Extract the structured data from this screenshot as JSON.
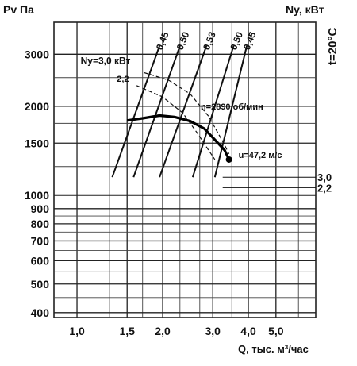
{
  "chart_data": {
    "type": "line",
    "y_title": "Pv Па",
    "power_title": "Ny, кВт",
    "temperature_label": "t=20°C",
    "x_title": "Q, тыс. м³/час",
    "scale": "log-log",
    "grid": true,
    "x_range": [
      0.83,
      6.9
    ],
    "y_range": [
      385,
      3850
    ],
    "x_ticks": [
      {
        "value": 1.0,
        "label": "1,0"
      },
      {
        "value": 1.5,
        "label": "1,5"
      },
      {
        "value": 2.0,
        "label": "2,0"
      },
      {
        "value": 3.0,
        "label": "3,0"
      },
      {
        "value": 4.0,
        "label": "4,0"
      },
      {
        "value": 5.0,
        "label": "5,0"
      }
    ],
    "y_ticks": [
      {
        "value": 3000,
        "label": "3000"
      },
      {
        "value": 2000,
        "label": "2000"
      },
      {
        "value": 1500,
        "label": "1500"
      },
      {
        "value": 1000,
        "label": "1000"
      },
      {
        "value": 900,
        "label": "900"
      },
      {
        "value": 800,
        "label": "800"
      },
      {
        "value": 700,
        "label": "700"
      },
      {
        "value": 600,
        "label": "600"
      },
      {
        "value": 500,
        "label": "500"
      },
      {
        "value": 400,
        "label": "400"
      }
    ],
    "extra_x_grid": [
      1.3,
      1.7,
      2.3,
      2.7,
      3.5,
      6.0
    ],
    "extra_y_grid": [
      2500,
      1750,
      1250,
      850,
      750,
      650,
      550,
      450
    ],
    "pressure_curve": {
      "x": [
        1.5,
        1.7,
        1.95,
        2.2,
        2.5,
        2.8,
        3.05,
        3.3,
        3.42
      ],
      "y": [
        1790,
        1820,
        1860,
        1840,
        1780,
        1680,
        1540,
        1420,
        1320
      ],
      "label": "n=2890 об/мин",
      "label_at": {
        "x": 2.72,
        "y": 1950
      }
    },
    "operating_point": {
      "x": 3.42,
      "y": 1320,
      "label": "u=47,2 м/с"
    },
    "efficiency_lines": [
      {
        "label": "0,45",
        "x_low": 1.33,
        "x_high": 1.95
      },
      {
        "label": "0,50",
        "x_low": 1.58,
        "x_high": 2.3
      },
      {
        "label": "0,53",
        "x_low": 1.95,
        "x_high": 2.85
      },
      {
        "label": "0,50",
        "x_low": 2.55,
        "x_high": 3.55
      },
      {
        "label": "0,45",
        "x_low": 3.05,
        "x_high": 3.95
      }
    ],
    "efficiency_y_low": 1150,
    "efficiency_y_high": 3200,
    "power_curves": [
      {
        "label": "3,0",
        "x": [
          1.72,
          2.1,
          2.5,
          2.9,
          3.3,
          3.42
        ],
        "y": [
          2600,
          2450,
          2200,
          1850,
          1480,
          1380
        ]
      },
      {
        "label": "2,2",
        "x": [
          1.62,
          2.0,
          2.35,
          2.65,
          2.9,
          3.05
        ],
        "y": [
          2350,
          2150,
          1900,
          1620,
          1420,
          1320
        ]
      }
    ],
    "power_header": "Ny=3,0 кВт",
    "power_header_at": {
      "x": 1.03,
      "y": 2780
    },
    "power_sub": "2,2",
    "power_sub_at": {
      "x": 1.38,
      "y": 2420
    },
    "power_scale_right": [
      {
        "label": "3,0",
        "y": 1150
      },
      {
        "label": "2,2",
        "y": 1060
      }
    ]
  }
}
